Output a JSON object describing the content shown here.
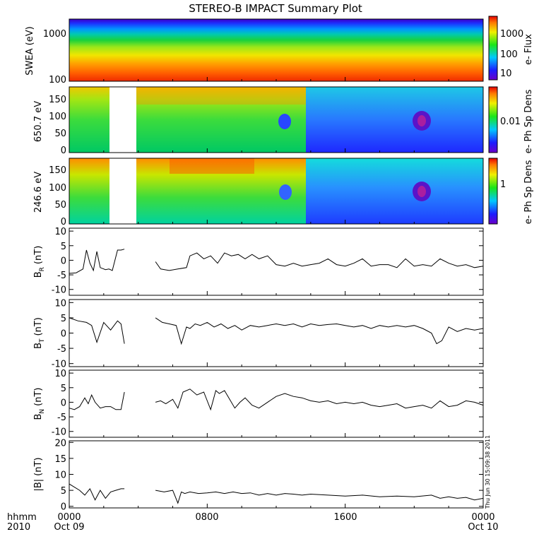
{
  "title": "STEREO-B IMPACT Summary Plot",
  "stamp": "Thu Jun 30 15:09:38 2011",
  "x_axis": {
    "ticks": [
      "0000",
      "0800",
      "1600",
      "0000"
    ],
    "dates": [
      "Oct 09",
      "",
      "",
      "Oct 10"
    ],
    "corner_label": [
      "hhmm",
      "2010"
    ]
  },
  "chart_data": [
    {
      "type": "heatmap",
      "ylabel": "SWEA (eV)",
      "ylog": true,
      "ylim": [
        95,
        2000
      ],
      "yticks": [
        "100",
        "1000"
      ],
      "colorbar": {
        "label": "e- Flux",
        "ticks": [
          "10",
          "100",
          "1000"
        ],
        "log": true,
        "range": [
          3,
          8000
        ]
      },
      "description_values": {
        "flux_high_at_100eV": 3000,
        "flux_low_at_2000eV": 3
      }
    },
    {
      "type": "heatmap",
      "ylabel": "650.7 eV",
      "ylim": [
        -10,
        180
      ],
      "yticks": [
        "0",
        "50",
        "100",
        "150"
      ],
      "colorbar": {
        "label": "e- Ph Sp Dens",
        "ticks": [
          "0.01"
        ]
      },
      "data_gap_hours": [
        3.2,
        5.0
      ]
    },
    {
      "type": "heatmap",
      "ylabel": "246.6 eV",
      "ylim": [
        -10,
        180
      ],
      "yticks": [
        "0",
        "50",
        "100",
        "150"
      ],
      "colorbar": {
        "label": "e- Ph Sp Dens",
        "ticks": [
          "1"
        ]
      },
      "data_gap_hours": [
        3.2,
        5.0
      ]
    },
    {
      "type": "line",
      "ylabel": "B_R (nT)",
      "label_main": "B",
      "label_sub": "R",
      "label_unit": "(nT)",
      "ylim": [
        -12,
        11
      ],
      "yticks": [
        "10",
        "5",
        "0",
        "-5",
        "-10"
      ],
      "x_hours": [
        0,
        0.4,
        0.8,
        1.0,
        1.2,
        1.4,
        1.6,
        1.8,
        2.1,
        2.3,
        2.5,
        2.8,
        3.0,
        3.2,
        5.0,
        5.3,
        5.8,
        6.3,
        6.8,
        7.0,
        7.4,
        7.8,
        8.2,
        8.6,
        9.0,
        9.4,
        9.8,
        10.2,
        10.6,
        11.0,
        11.5,
        12.0,
        12.5,
        13.0,
        13.5,
        14.0,
        14.5,
        15.0,
        15.5,
        16.0,
        16.5,
        17.0,
        17.5,
        18.0,
        18.5,
        19.0,
        19.5,
        20.0,
        20.5,
        21.0,
        21.5,
        22.0,
        22.5,
        23.0,
        23.5,
        24.0
      ],
      "values": [
        -4.5,
        -4.3,
        -3.0,
        3.5,
        -1.0,
        -3.5,
        3.0,
        -2.5,
        -3.2,
        -3.0,
        -3.5,
        3.5,
        3.5,
        3.8,
        -0.5,
        -3.0,
        -3.5,
        -3.0,
        -2.5,
        1.5,
        2.5,
        0.5,
        1.5,
        -1.0,
        2.5,
        1.5,
        2.0,
        0.5,
        2.0,
        0.5,
        1.5,
        -1.5,
        -2.0,
        -1.0,
        -2.0,
        -1.5,
        -1.0,
        0.5,
        -1.5,
        -2.0,
        -1.0,
        0.5,
        -2.0,
        -1.5,
        -1.5,
        -2.5,
        0.5,
        -2.0,
        -1.5,
        -2.0,
        0.5,
        -1.0,
        -2.0,
        -1.5,
        -2.5,
        -2.0
      ]
    },
    {
      "type": "line",
      "ylabel": "B_T (nT)",
      "label_main": "B",
      "label_sub": "T",
      "label_unit": "(nT)",
      "ylim": [
        -11,
        11
      ],
      "yticks": [
        "10",
        "5",
        "0",
        "-5",
        "-10"
      ],
      "x_hours": [
        0,
        0.5,
        1.0,
        1.3,
        1.6,
        2.0,
        2.4,
        2.8,
        3.0,
        3.2,
        5.0,
        5.4,
        5.8,
        6.2,
        6.5,
        6.8,
        7.0,
        7.3,
        7.6,
        8.0,
        8.4,
        8.8,
        9.2,
        9.6,
        10.0,
        10.5,
        11.0,
        11.5,
        12.0,
        12.5,
        13.0,
        13.5,
        14.0,
        14.5,
        15.0,
        15.5,
        16.0,
        16.5,
        17.0,
        17.5,
        18.0,
        18.5,
        19.0,
        19.5,
        20.0,
        20.5,
        21.0,
        21.3,
        21.6,
        22.0,
        22.5,
        23.0,
        23.5,
        24.0
      ],
      "values": [
        5.0,
        4.0,
        3.5,
        2.5,
        -3.0,
        3.5,
        1.0,
        4.0,
        3.0,
        -3.5,
        5.0,
        3.5,
        3.0,
        2.5,
        -3.5,
        2.0,
        1.5,
        3.0,
        2.5,
        3.5,
        2.0,
        3.0,
        1.5,
        2.5,
        1.0,
        2.5,
        2.0,
        2.5,
        3.0,
        2.5,
        3.0,
        2.0,
        3.0,
        2.5,
        2.8,
        3.0,
        2.5,
        2.0,
        2.5,
        1.5,
        2.5,
        2.0,
        2.5,
        2.0,
        2.5,
        1.5,
        0.0,
        -3.5,
        -2.5,
        2.0,
        0.5,
        1.5,
        1.0,
        1.5
      ]
    },
    {
      "type": "line",
      "ylabel": "B_N (nT)",
      "label_main": "B",
      "label_sub": "N",
      "label_unit": "(nT)",
      "ylim": [
        -12,
        11
      ],
      "yticks": [
        "10",
        "5",
        "0",
        "-5",
        "-10"
      ],
      "x_hours": [
        0,
        0.3,
        0.6,
        0.9,
        1.1,
        1.3,
        1.5,
        1.8,
        2.1,
        2.4,
        2.7,
        3.0,
        3.2,
        5.0,
        5.3,
        5.6,
        6.0,
        6.3,
        6.6,
        7.0,
        7.4,
        7.8,
        8.2,
        8.5,
        8.7,
        9.0,
        9.3,
        9.6,
        9.9,
        10.2,
        10.6,
        11.0,
        11.5,
        12.0,
        12.5,
        13.0,
        13.5,
        14.0,
        14.5,
        15.0,
        15.5,
        16.0,
        16.5,
        17.0,
        17.5,
        18.0,
        18.5,
        19.0,
        19.5,
        20.0,
        20.5,
        21.0,
        21.5,
        22.0,
        22.5,
        23.0,
        23.5,
        24.0
      ],
      "values": [
        -2.0,
        -2.5,
        -1.5,
        1.5,
        -0.5,
        2.5,
        0.0,
        -2.0,
        -1.5,
        -1.5,
        -2.5,
        -2.5,
        3.5,
        0.0,
        0.5,
        -0.5,
        1.0,
        -2.0,
        3.5,
        4.5,
        2.5,
        3.5,
        -2.5,
        4.0,
        3.0,
        4.0,
        1.0,
        -2.0,
        0.0,
        1.5,
        -1.0,
        -2.0,
        0.0,
        2.0,
        3.0,
        2.0,
        1.5,
        0.5,
        0.0,
        0.5,
        -0.5,
        0.0,
        -0.5,
        0.0,
        -1.0,
        -1.5,
        -1.0,
        -0.5,
        -2.0,
        -1.5,
        -1.0,
        -2.0,
        0.5,
        -1.5,
        -1.0,
        0.5,
        0.0,
        -1.0
      ]
    },
    {
      "type": "line",
      "ylabel": "|B| (nT)",
      "label_main": "|B|",
      "label_sub": "",
      "label_unit": "(nT)",
      "ylim": [
        -0.5,
        20.5
      ],
      "yticks": [
        "20",
        "15",
        "10",
        "5",
        "0"
      ],
      "x_hours": [
        0,
        0.3,
        0.6,
        0.9,
        1.2,
        1.5,
        1.8,
        2.1,
        2.4,
        2.7,
        3.0,
        3.2,
        5.0,
        5.5,
        6.0,
        6.3,
        6.5,
        6.7,
        7.0,
        7.5,
        8.0,
        8.5,
        9.0,
        9.5,
        10.0,
        10.5,
        11.0,
        11.5,
        12.0,
        12.5,
        13.0,
        13.5,
        14.0,
        15.0,
        16.0,
        17.0,
        18.0,
        19.0,
        20.0,
        21.0,
        21.5,
        22.0,
        22.5,
        23.0,
        23.5,
        24.0
      ],
      "values": [
        7.0,
        6.0,
        5.0,
        3.5,
        5.5,
        2.0,
        5.0,
        2.5,
        4.5,
        5.0,
        5.5,
        5.5,
        5.0,
        4.5,
        5.0,
        1.0,
        4.5,
        4.0,
        4.5,
        4.0,
        4.2,
        4.5,
        4.0,
        4.5,
        4.0,
        4.2,
        3.5,
        4.0,
        3.5,
        4.0,
        3.8,
        3.5,
        3.8,
        3.5,
        3.2,
        3.5,
        3.0,
        3.2,
        3.0,
        3.5,
        2.5,
        3.0,
        2.5,
        2.8,
        2.0,
        2.5
      ]
    }
  ]
}
